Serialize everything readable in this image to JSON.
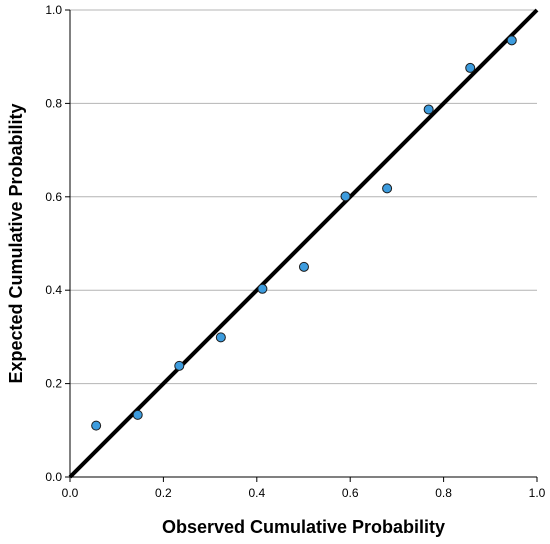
{
  "chart_data": {
    "type": "scatter",
    "title": "",
    "xlabel": "Observed Cumulative Probability",
    "ylabel": "Expected Cumulative Probability",
    "xlim": [
      0.0,
      1.0
    ],
    "ylim": [
      0.0,
      1.0
    ],
    "x_ticks": [
      "0.0",
      "0.2",
      "0.4",
      "0.6",
      "0.8",
      "1.0"
    ],
    "y_ticks": [
      "0.0",
      "0.2",
      "0.4",
      "0.6",
      "0.8",
      "1.0"
    ],
    "grid": "horizontal",
    "legend": "none",
    "reference_line": {
      "from": [
        0.0,
        0.0
      ],
      "to": [
        1.0,
        1.0
      ],
      "color": "#000000"
    },
    "point_color": "#3d9cde",
    "point_edge_color": "#1a1a1a",
    "series": [
      {
        "points": [
          {
            "x": 0.056,
            "y": 0.11
          },
          {
            "x": 0.145,
            "y": 0.133
          },
          {
            "x": 0.234,
            "y": 0.238
          },
          {
            "x": 0.323,
            "y": 0.299
          },
          {
            "x": 0.412,
            "y": 0.403
          },
          {
            "x": 0.501,
            "y": 0.45
          },
          {
            "x": 0.59,
            "y": 0.601
          },
          {
            "x": 0.679,
            "y": 0.618
          },
          {
            "x": 0.768,
            "y": 0.787
          },
          {
            "x": 0.857,
            "y": 0.876
          },
          {
            "x": 0.946,
            "y": 0.935
          }
        ]
      }
    ]
  }
}
